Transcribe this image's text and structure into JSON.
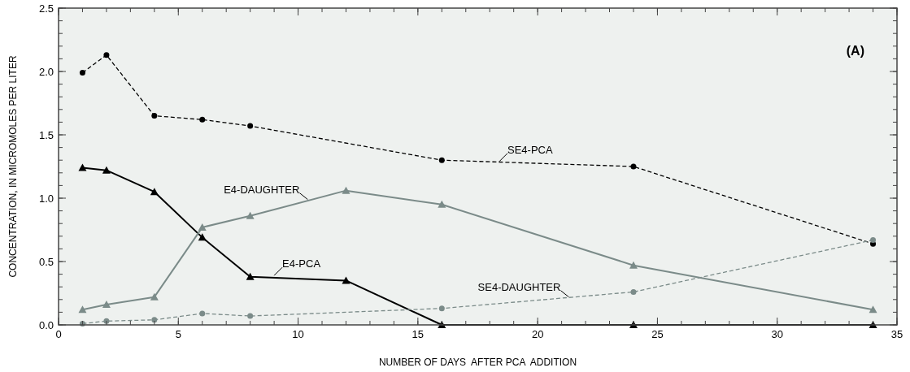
{
  "chart_data": {
    "type": "line",
    "xlabel": "NUMBER OF DAYS  AFTER PCA  ADDITION",
    "ylabel": "CONCENTRATION, IN MICROMOLES PER LITER",
    "xlim": [
      0,
      35
    ],
    "xticks": [
      0,
      5,
      10,
      15,
      20,
      25,
      30,
      35
    ],
    "ylim": [
      0,
      2.5
    ],
    "yticks": [
      {
        "value": 0,
        "label": "0.0"
      },
      {
        "value": 0.5,
        "label": "0.5"
      },
      {
        "value": 1,
        "label": "1.0"
      },
      {
        "value": 1.5,
        "label": "1.5"
      },
      {
        "value": 2,
        "label": "2.0"
      },
      {
        "value": 2.5,
        "label": "2.5"
      }
    ],
    "grid": false,
    "series": [
      {
        "color": "#000000",
        "marker": "circle",
        "line_style": "dashed",
        "x": [
          1,
          2,
          4,
          6,
          8,
          16,
          24,
          34
        ],
        "values": [
          1.99,
          2.13,
          1.65,
          1.62,
          1.57,
          1.3,
          1.25,
          0.64
        ]
      },
      {
        "color": "#000000",
        "marker": "triangle",
        "line_style": "solid",
        "x": [
          1,
          2,
          4,
          6,
          8,
          12,
          16,
          24,
          34
        ],
        "values": [
          1.24,
          1.22,
          1.05,
          0.69,
          0.38,
          0.35,
          0,
          0,
          0
        ]
      },
      {
        "color": "#7b8b89",
        "marker": "triangle",
        "line_style": "solid",
        "x": [
          1,
          2,
          4,
          6,
          8,
          12,
          16,
          24,
          34
        ],
        "values": [
          0.12,
          0.16,
          0.22,
          0.77,
          0.86,
          1.06,
          0.95,
          0.47,
          0.12
        ]
      },
      {
        "color": "#7b8b89",
        "marker": "circle",
        "line_style": "dashed",
        "x": [
          1,
          2,
          4,
          6,
          8,
          16,
          24,
          34
        ],
        "values": [
          0.01,
          0.03,
          0.04,
          0.09,
          0.07,
          0.13,
          0.26,
          0.67
        ]
      }
    ],
    "annotations": [
      {
        "text": "SE4-PCA",
        "x": 18.4,
        "y": 1.29
      },
      {
        "text": "E4-DAUGHTER",
        "x": 10.4,
        "y": 0.99
      },
      {
        "text": "E4-PCA",
        "x": 9.0,
        "y": 0.39
      },
      {
        "text": "SE4-DAUGHTER",
        "x": 21.3,
        "y": 0.22
      },
      "(A)"
    ]
  }
}
